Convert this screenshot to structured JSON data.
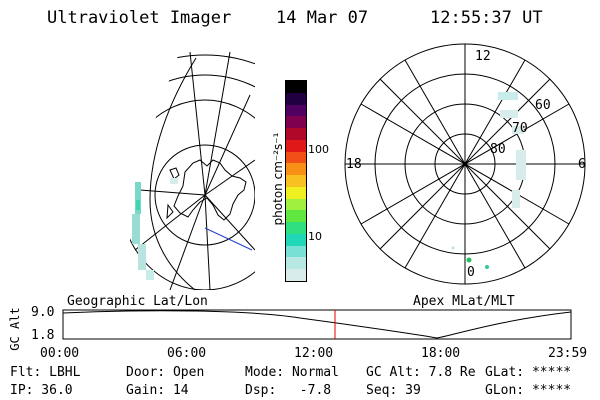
{
  "header": {
    "title": "Ultraviolet Imager",
    "date": "14 Mar 07",
    "time": "12:55:37 UT"
  },
  "colorbar": {
    "unit_label": "photon cm⁻²s⁻¹",
    "tick_100": "100",
    "tick_10": "10",
    "colors": [
      "#d8ecec",
      "#b8e8e4",
      "#78e0d4",
      "#20d8b8",
      "#30e080",
      "#60e840",
      "#a0f040",
      "#f0f020",
      "#f8c020",
      "#f89018",
      "#f05018",
      "#e01818",
      "#b00828",
      "#800050",
      "#500060",
      "#200040",
      "#000000"
    ]
  },
  "panels": {
    "left_label": "Geographic Lat/Lon",
    "right_label": "Apex MLat/MLT"
  },
  "polar": {
    "mlt_12": "12",
    "mlt_18": "18",
    "mlt_6": "6",
    "mlt_0": "0",
    "lat_60": "60",
    "lat_70": "70",
    "lat_80": "80"
  },
  "altitude_plot": {
    "ylabel": "GC Alt",
    "ytick_top": "9.0",
    "ytick_bottom": "1.8",
    "xticks": [
      "00:00",
      "06:00",
      "12:00",
      "18:00",
      "23:59"
    ],
    "current_time_color": "#e00000"
  },
  "status": {
    "filter": "Flt: LBHL",
    "ip": "IP: 36.0",
    "door": "Door: Open",
    "gain": "Gain: 14",
    "mode": "Mode: Normal",
    "dsp": "Dsp:   -7.8",
    "gc_alt": "GC Alt: 7.8 Re",
    "seq": "Seq: 39",
    "glat": "GLat: *****",
    "glon": "GLon: *****"
  }
}
